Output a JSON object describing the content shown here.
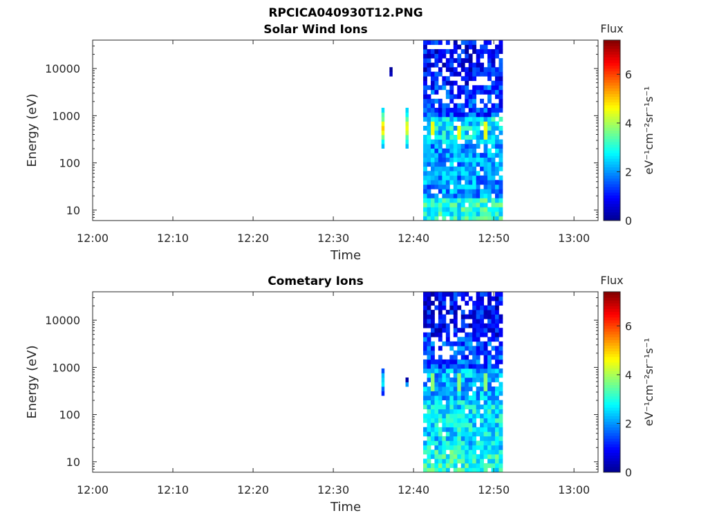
{
  "figure_title": "RPCICA040930T12.PNG",
  "colors": {
    "colormap": [
      "#00008f",
      "#0000ff",
      "#0080ff",
      "#00ffff",
      "#80ff80",
      "#ffff00",
      "#ff8000",
      "#ff0000",
      "#800000"
    ],
    "axis": "#262626",
    "background": "#ffffff"
  },
  "chart_data": [
    {
      "type": "heatmap",
      "title": "Solar Wind Ions",
      "xlabel": "Time",
      "ylabel": "Energy (eV)",
      "y_scale": "log",
      "xlim": [
        "12:00",
        "13:03"
      ],
      "ylim": [
        6,
        40000
      ],
      "x_ticks": [
        "12:00",
        "12:10",
        "12:20",
        "12:30",
        "12:40",
        "12:50",
        "13:00"
      ],
      "y_ticks": [
        "10",
        "100",
        "1000",
        "10000"
      ],
      "colorbar": {
        "title": "Flux",
        "label": "eV⁻¹cm⁻²sr⁻¹s⁻¹",
        "range": [
          0,
          7.4
        ],
        "ticks": [
          "0",
          "2",
          "4",
          "6"
        ]
      },
      "observations": [
        {
          "time": "12:36",
          "energy_range_eV": [
            230,
            1400
          ],
          "peak_flux": 5.0
        },
        {
          "time": "12:39",
          "energy_range_eV": [
            230,
            1400
          ],
          "peak_flux": 4.8
        },
        {
          "time": "12:37",
          "energy_range_eV": [
            8000,
            9000
          ],
          "peak_flux": 1.5
        },
        {
          "time": "12:41–12:51",
          "energy_range_eV": [
            6,
            40000
          ],
          "peak_flux": 4.5,
          "note": "dense continuous data"
        }
      ]
    },
    {
      "type": "heatmap",
      "title": "Cometary Ions",
      "xlabel": "Time",
      "ylabel": "Energy (eV)",
      "y_scale": "log",
      "xlim": [
        "12:00",
        "13:03"
      ],
      "ylim": [
        6,
        40000
      ],
      "x_ticks": [
        "12:00",
        "12:10",
        "12:20",
        "12:30",
        "12:40",
        "12:50",
        "13:00"
      ],
      "y_ticks": [
        "10",
        "100",
        "1000",
        "10000"
      ],
      "colorbar": {
        "title": "Flux",
        "label": "eV⁻¹cm⁻²sr⁻¹s⁻¹",
        "range": [
          0,
          7.4
        ],
        "ticks": [
          "0",
          "2",
          "4",
          "6"
        ]
      },
      "observations": [
        {
          "time": "12:36",
          "energy_range_eV": [
            280,
            900
          ],
          "peak_flux": 2.8
        },
        {
          "time": "12:39",
          "energy_range_eV": [
            400,
            500
          ],
          "peak_flux": 2.5
        },
        {
          "time": "12:41–12:51",
          "energy_range_eV": [
            6,
            40000
          ],
          "peak_flux": 3.8,
          "note": "dense continuous data"
        }
      ]
    }
  ]
}
